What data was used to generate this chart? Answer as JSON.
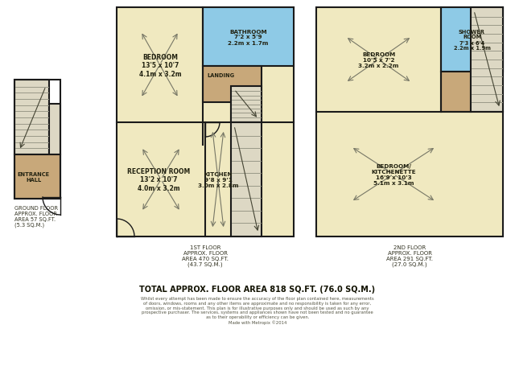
{
  "wall_color": "#1a1a1a",
  "room_yellow": "#f0e9c0",
  "room_blue": "#8ecae6",
  "room_brown": "#c8a87a",
  "stair_light": "#ddd8c4",
  "ground_floor_text": "GROUND FLOOR\nAPPROX. FLOOR\nAREA 57 SQ.FT.\n(5.3 SQ.M.)",
  "first_floor_text": "1ST FLOOR\nAPPROX. FLOOR\nAREA 470 SQ.FT.\n(43.7 SQ.M.)",
  "second_floor_text": "2ND FLOOR\nAPPROX. FLOOR\nAREA 291 SQ.FT.\n(27.0 SQ.M.)",
  "footer_total": "TOTAL APPROX. FLOOR AREA 818 SQ.FT. (76.0 SQ.M.)",
  "disclaimer": "Whilst every attempt has been made to ensure the accuracy of the floor plan contained here, measurements\nof doors, windows, rooms and any other items are approximate and no responsibility is taken for any error,\nomission, or mis-statement. This plan is for illustrative purposes only and should be used as such by any\nprospective purchaser. The services, systems and appliances shown have not been tested and no guarantee\nas to their operability or efficiency can be given.\nMade with Metropix ©2014"
}
